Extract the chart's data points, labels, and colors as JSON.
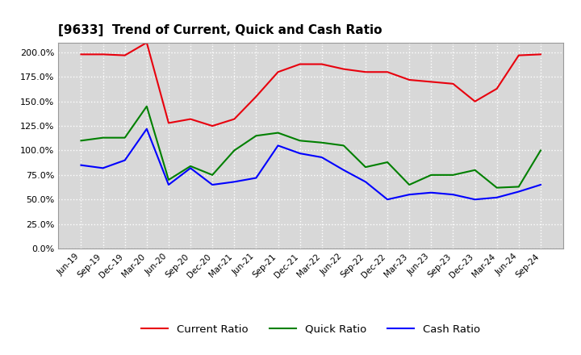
{
  "title": "[9633]  Trend of Current, Quick and Cash Ratio",
  "labels": [
    "Jun-19",
    "Sep-19",
    "Dec-19",
    "Mar-20",
    "Jun-20",
    "Sep-20",
    "Dec-20",
    "Mar-21",
    "Jun-21",
    "Sep-21",
    "Dec-21",
    "Mar-22",
    "Jun-22",
    "Sep-22",
    "Dec-22",
    "Mar-23",
    "Jun-23",
    "Sep-23",
    "Dec-23",
    "Mar-24",
    "Jun-24",
    "Sep-24"
  ],
  "current_ratio": [
    198,
    198,
    197,
    210,
    128,
    132,
    125,
    132,
    155,
    180,
    188,
    188,
    183,
    180,
    180,
    172,
    170,
    168,
    150,
    163,
    197,
    198
  ],
  "quick_ratio": [
    110,
    113,
    113,
    145,
    70,
    84,
    75,
    100,
    115,
    118,
    110,
    108,
    105,
    83,
    88,
    65,
    75,
    75,
    80,
    62,
    63,
    100
  ],
  "cash_ratio": [
    85,
    82,
    90,
    122,
    65,
    82,
    65,
    68,
    72,
    105,
    97,
    93,
    80,
    68,
    50,
    55,
    57,
    55,
    50,
    52,
    58,
    65
  ],
  "current_color": "#e8000d",
  "quick_color": "#008000",
  "cash_color": "#0000ff",
  "bg_color": "#ffffff",
  "plot_bg_color": "#d8d8d8",
  "grid_color": "#ffffff",
  "ylim": [
    0,
    210
  ],
  "yticks": [
    0,
    25,
    50,
    75,
    100,
    125,
    150,
    175,
    200
  ],
  "line_width": 1.5
}
